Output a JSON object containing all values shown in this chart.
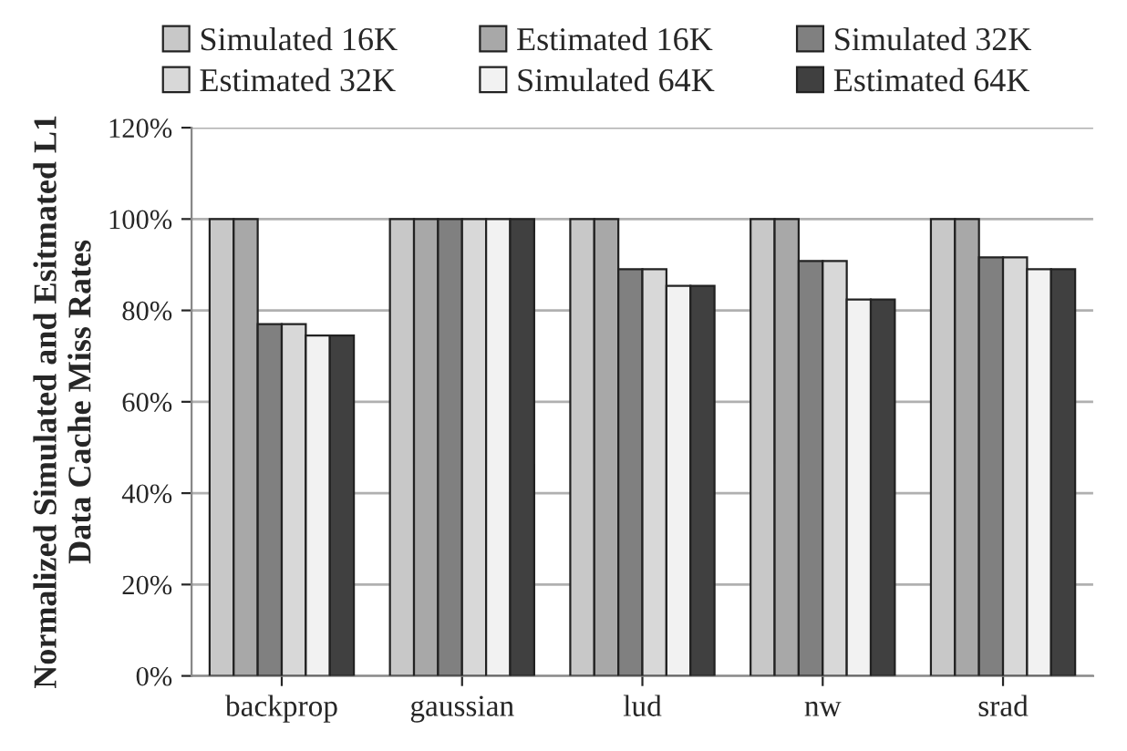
{
  "chart_data": {
    "type": "bar",
    "ylabel": "Normalized Simulated and Esitmated L1\nData Cache Miss Rates",
    "categories": [
      "backprop",
      "gaussian",
      "lud",
      "nw",
      "srad"
    ],
    "series": [
      {
        "name": "Simulated 16K",
        "color": "#c8c8c8",
        "values": [
          100,
          100,
          100,
          100,
          100
        ]
      },
      {
        "name": "Estimated 16K",
        "color": "#a8a8a8",
        "values": [
          100,
          100,
          100,
          100,
          100
        ]
      },
      {
        "name": "Simulated 32K",
        "color": "#808080",
        "values": [
          77,
          100,
          89,
          90.8,
          91.6
        ]
      },
      {
        "name": "Estimated 32K",
        "color": "#d8d8d8",
        "values": [
          77,
          100,
          89,
          90.8,
          91.6
        ]
      },
      {
        "name": "Simulated 64K",
        "color": "#f2f2f2",
        "values": [
          74.5,
          100,
          85.4,
          82.4,
          89
        ]
      },
      {
        "name": "Estimated 64K",
        "color": "#404040",
        "values": [
          74.5,
          100,
          85.4,
          82.4,
          89
        ]
      }
    ],
    "ylim": [
      0,
      120
    ],
    "yticks": [
      {
        "value": 0,
        "label": "0%"
      },
      {
        "value": 20,
        "label": "20%"
      },
      {
        "value": 40,
        "label": "40%"
      },
      {
        "value": 60,
        "label": "60%"
      },
      {
        "value": 80,
        "label": "80%"
      },
      {
        "value": 100,
        "label": "100%"
      },
      {
        "value": 120,
        "label": "120%"
      }
    ],
    "grid": "y",
    "legend": "top"
  }
}
